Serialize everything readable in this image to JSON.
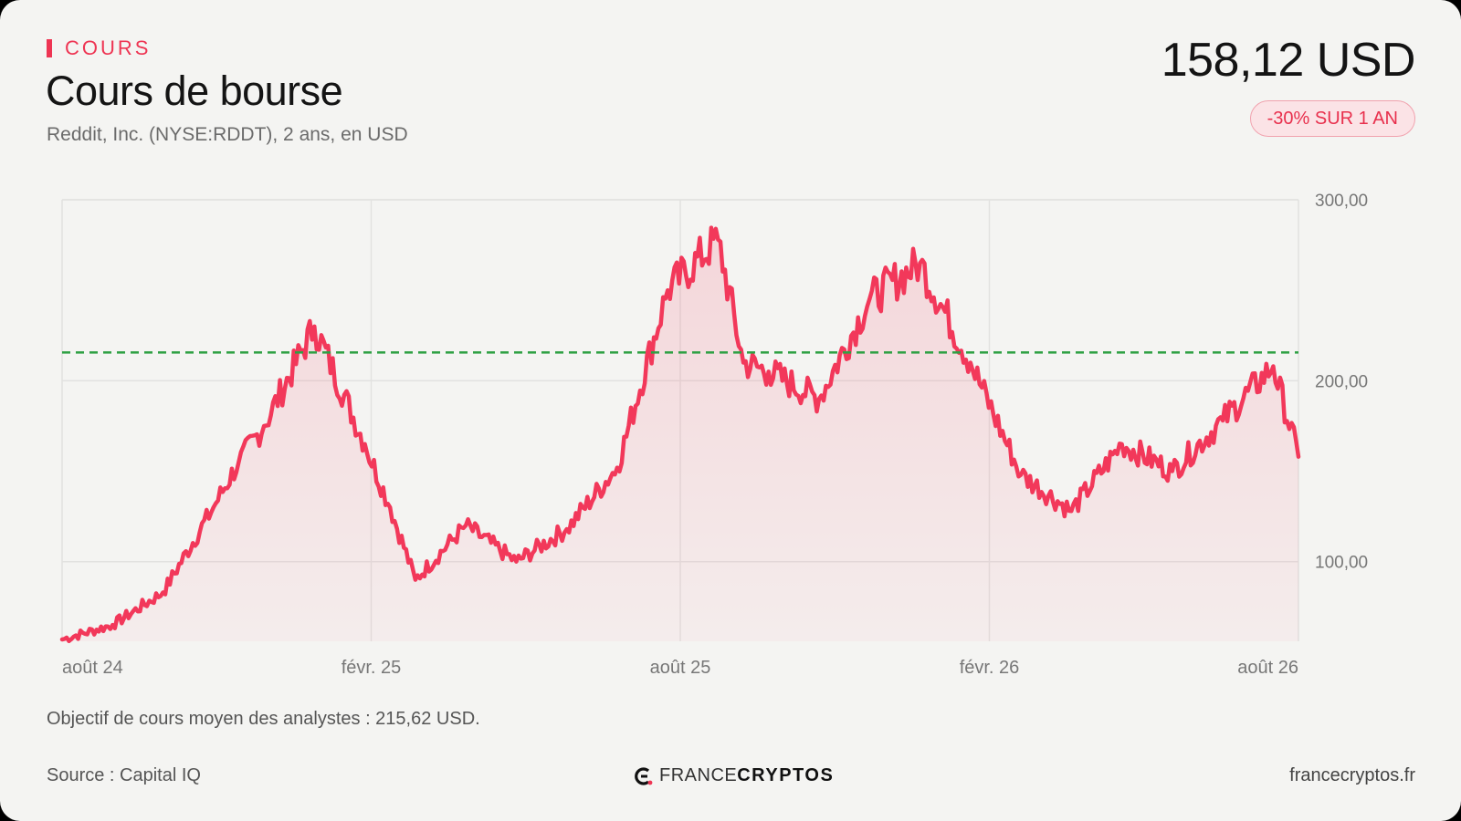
{
  "header": {
    "eyebrow": "COURS",
    "title": "Cours de bourse",
    "subtitle": "Reddit, Inc. (NYSE:RDDT), 2 ans, en USD",
    "price": "158,12 USD",
    "change_badge": "-30% SUR 1 AN"
  },
  "footer": {
    "note": "Objectif de cours moyen des analystes : 215,62 USD.",
    "source": "Source : Capital IQ",
    "brand_light": "FRANCE",
    "brand_bold": "CRYPTOS",
    "site": "francecryptos.fr"
  },
  "colors": {
    "accent": "#ee3553",
    "line": "#f2385a",
    "target_line": "#2ea043",
    "background": "#f4f4f2"
  },
  "chart_data": {
    "type": "area",
    "x_ticks": [
      "août 24",
      "févr. 25",
      "août 25",
      "févr. 26",
      "août 26"
    ],
    "y_ticks": [
      "100,00",
      "200,00",
      "300,00"
    ],
    "ylim": [
      56,
      300
    ],
    "grid": true,
    "target_value": 215.62,
    "series": [
      {
        "x": [
          "2024-08",
          "2024-09",
          "2024-10",
          "2024-11",
          "2024-11",
          "2024-12",
          "2025-01",
          "2025-02",
          "2025-02",
          "2025-03",
          "2025-04",
          "2025-05",
          "2025-06",
          "2025-07",
          "2025-08",
          "2025-09",
          "2025-09",
          "2025-10",
          "2025-11",
          "2025-12",
          "2026-01",
          "2026-02",
          "2026-03",
          "2026-04",
          "2026-05",
          "2026-06",
          "2026-07",
          "2026-08",
          "2026-08"
        ],
        "values": [
          57,
          65,
          83,
          130,
          155,
          175,
          230,
          165,
          130,
          90,
          120,
          100,
          118,
          152,
          250,
          278,
          210,
          205,
          190,
          245,
          265,
          210,
          148,
          128,
          165,
          150,
          178,
          208,
          158
        ]
      }
    ]
  }
}
